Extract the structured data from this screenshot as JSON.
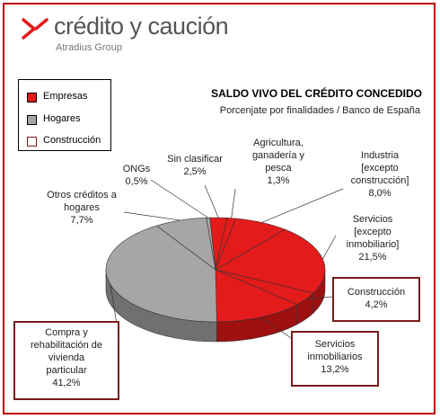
{
  "logo": {
    "brand_text": "crédito y caución",
    "sub_text": "Atradius Group"
  },
  "chart_data": {
    "type": "pie",
    "title": "SALDO VIVO DEL CRÉDITO CONCEDIDO",
    "subtitle": "Porcenjate por finalidades / Banco de España",
    "legend": {
      "position": "top-left",
      "entries": [
        {
          "label": "Empresas",
          "color": "#e31b1b"
        },
        {
          "label": "Hogares",
          "color": "#a6a6a6"
        },
        {
          "label": "Construcción",
          "color": "#ffffff"
        }
      ]
    },
    "slices": [
      {
        "label": "Sin clasificar",
        "value": 2.5,
        "value_label": "2,5%",
        "group": "Empresas"
      },
      {
        "label": "Agricultura, ganadería y pesca",
        "value": 1.3,
        "value_label": "1,3%",
        "group": "Empresas"
      },
      {
        "label": "Industria [excepto construcción]",
        "value": 8.0,
        "value_label": "8,0%",
        "group": "Empresas"
      },
      {
        "label": "Servicios [excepto inmobiliario]",
        "value": 21.5,
        "value_label": "21,5%",
        "group": "Empresas"
      },
      {
        "label": "Construcción",
        "value": 4.2,
        "value_label": "4,2%",
        "group": "Construcción"
      },
      {
        "label": "Servicios inmobiliarios",
        "value": 13.2,
        "value_label": "13,2%",
        "group": "Construcción"
      },
      {
        "label": "Compra y rehabilitación de vivienda particular",
        "value": 41.2,
        "value_label": "41,2%",
        "group": "Hogares"
      },
      {
        "label": "Otros créditos a hogares",
        "value": 7.7,
        "value_label": "7,7%",
        "group": "Hogares"
      },
      {
        "label": "ONGs",
        "value": 0.5,
        "value_label": "0,5%",
        "group": "Hogares"
      }
    ]
  },
  "labels": {
    "sin_clasificar": {
      "line1": "Sin clasificar",
      "line2": "2,5%"
    },
    "agricultura": {
      "line1": "Agricultura,",
      "line2": "ganadería y",
      "line3": "pesca",
      "line4": "1,3%"
    },
    "industria": {
      "line1": "Industria",
      "line2": "[excepto",
      "line3": "construcción]",
      "line4": "8,0%"
    },
    "servicios": {
      "line1": "Servicios",
      "line2": "[excepto",
      "line3": "inmobiliario]",
      "line4": "21,5%"
    },
    "construccion": {
      "line1": "Construcción",
      "line2": "4,2%"
    },
    "inmobiliarios": {
      "line1": "Servicios",
      "line2": "inmobiliarios",
      "line3": "13,2%"
    },
    "vivienda": {
      "line1": "Compra y",
      "line2": "rehabilitación de",
      "line3": "vivienda",
      "line4": "particular",
      "line5": "41,2%"
    },
    "otros": {
      "line1": "Otros créditos a",
      "line2": "hogares",
      "line3": "7,7%"
    },
    "ongs": {
      "line1": "ONGs",
      "line2": "0,5%"
    }
  }
}
